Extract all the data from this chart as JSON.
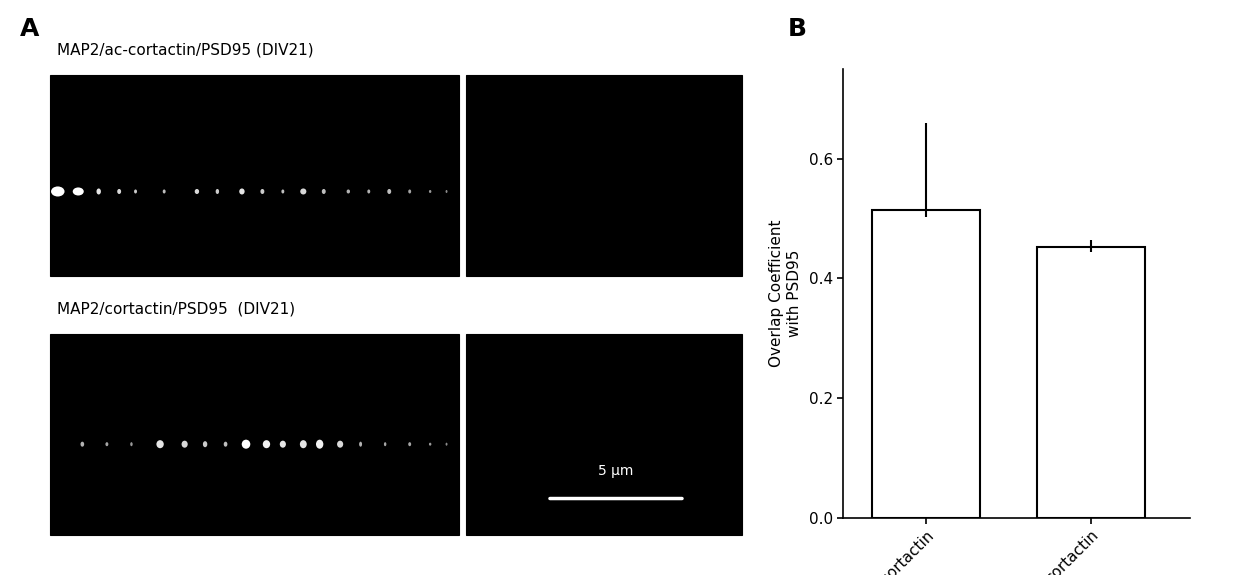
{
  "panel_A_label": "A",
  "panel_B_label": "B",
  "image1_label": "MAP2/ac-cortactin/PSD95 (DIV21)",
  "image2_label": "MAP2/cortactin/PSD95  (DIV21)",
  "scale_bar_label": "5 μm",
  "bar_categories": [
    "ac-cortactin",
    "cortactin"
  ],
  "bar_values": [
    0.514,
    0.452
  ],
  "errors_lower": [
    0.012,
    0.008
  ],
  "errors_upper": [
    0.145,
    0.012
  ],
  "ylabel": "Overlap Coefficient\nwith PSD95",
  "ylim": [
    0,
    0.75
  ],
  "yticks": [
    0.0,
    0.2,
    0.4,
    0.6
  ],
  "yticklabels": [
    "0.0",
    "0.2",
    "0.4",
    "0.6"
  ],
  "bar_color": "#ffffff",
  "bar_edgecolor": "#000000",
  "background_color": "#ffffff",
  "text_color": "#000000",
  "figure_width": 12.4,
  "figure_height": 5.75,
  "dpi": 100
}
